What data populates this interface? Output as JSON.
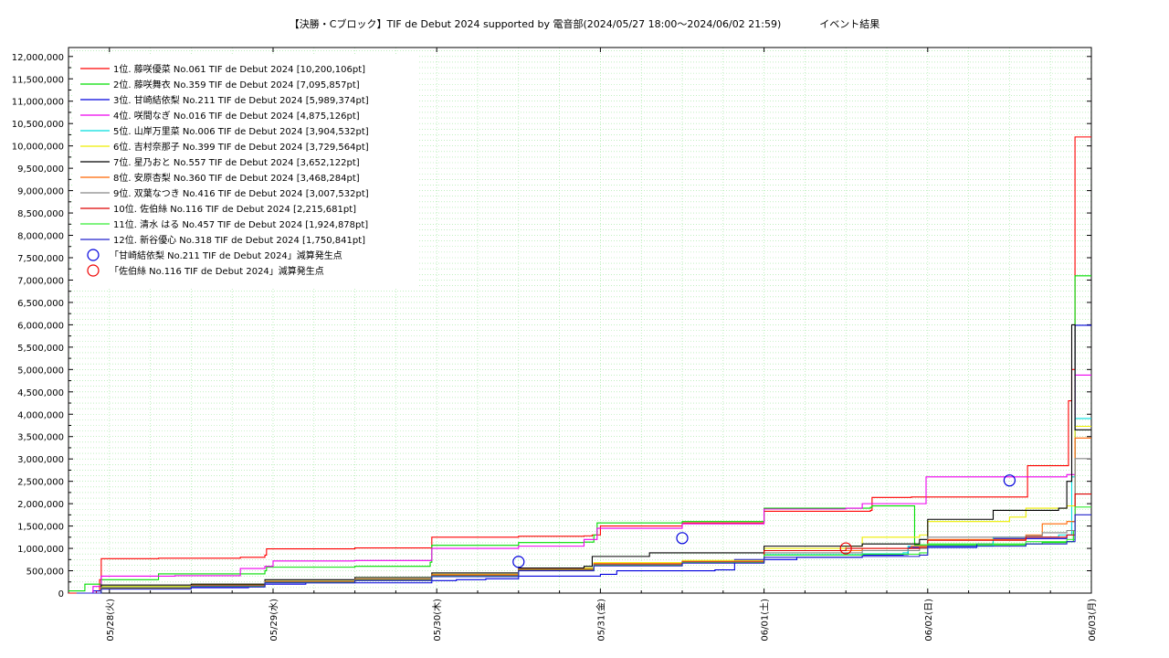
{
  "chart_data": {
    "type": "line",
    "title": "【決勝・Cブロック】TIF de Debut 2024 supported by 電音部(2024/05/27 18:00～2024/06/02 21:59)            イベント結果",
    "xlabel": "",
    "ylabel": "",
    "x_ticks": [
      "05/28(火)",
      "05/29(水)",
      "05/30(木)",
      "05/31(金)",
      "06/01(土)",
      "06/02(日)",
      "06/03(月)"
    ],
    "x_tick_days": [
      1,
      2,
      3,
      4,
      5,
      6,
      7
    ],
    "x_range_days": [
      0.75,
      7.0
    ],
    "y_ticks": [
      0,
      500000,
      1000000,
      1500000,
      2000000,
      2500000,
      3000000,
      3500000,
      4000000,
      4500000,
      5000000,
      5500000,
      6000000,
      6500000,
      7000000,
      7500000,
      8000000,
      8500000,
      9000000,
      9500000,
      10000000,
      10500000,
      11000000,
      11500000,
      12000000
    ],
    "y_tick_labels": [
      "0",
      "500,000",
      "1,000,000",
      "1,500,000",
      "2,000,000",
      "2,500,000",
      "3,000,000",
      "3,500,000",
      "4,000,000",
      "4,500,000",
      "5,000,000",
      "5,500,000",
      "6,000,000",
      "6,500,000",
      "7,000,000",
      "7,500,000",
      "8,000,000",
      "8,500,000",
      "9,000,000",
      "9,500,000",
      "10,000,000",
      "10,500,000",
      "11,000,000",
      "11,500,000",
      "12,000,000"
    ],
    "ylim": [
      0,
      12200000
    ],
    "grid": true,
    "legend_position": "top-left",
    "series": [
      {
        "name": "1位. 藤咲優菜 No.061 TIF de Debut 2024 [10,200,106pt]",
        "color": "#ff0000",
        "points": [
          [
            0.75,
            0
          ],
          [
            0.92,
            50000
          ],
          [
            0.94,
            300000
          ],
          [
            0.95,
            770000
          ],
          [
            1.3,
            780000
          ],
          [
            1.8,
            800000
          ],
          [
            1.95,
            850000
          ],
          [
            1.96,
            990000
          ],
          [
            2.5,
            1010000
          ],
          [
            2.96,
            1010000
          ],
          [
            2.97,
            1250000
          ],
          [
            3.5,
            1270000
          ],
          [
            3.9,
            1280000
          ],
          [
            3.95,
            1300000
          ],
          [
            4.0,
            1500000
          ],
          [
            4.5,
            1570000
          ],
          [
            5.0,
            1830000
          ],
          [
            5.65,
            1850000
          ],
          [
            5.66,
            2140000
          ],
          [
            5.9,
            2150000
          ],
          [
            6.6,
            2150000
          ],
          [
            6.61,
            2850000
          ],
          [
            6.84,
            2850000
          ],
          [
            6.86,
            4300000
          ],
          [
            6.88,
            5000000
          ],
          [
            6.9,
            10200106
          ],
          [
            7.0,
            10200106
          ]
        ]
      },
      {
        "name": "2位. 藤咲舞衣 No.359 TIF de Debut 2024 [7,095,857pt]",
        "color": "#00dd00",
        "points": [
          [
            0.75,
            50000
          ],
          [
            0.85,
            200000
          ],
          [
            0.95,
            300000
          ],
          [
            1.3,
            430000
          ],
          [
            1.95,
            500000
          ],
          [
            1.96,
            580000
          ],
          [
            2.5,
            600000
          ],
          [
            2.96,
            690000
          ],
          [
            2.97,
            1070000
          ],
          [
            3.5,
            1130000
          ],
          [
            3.9,
            1140000
          ],
          [
            3.96,
            1300000
          ],
          [
            3.98,
            1570000
          ],
          [
            4.5,
            1600000
          ],
          [
            5.0,
            1900000
          ],
          [
            5.65,
            1920000
          ],
          [
            5.66,
            1950000
          ],
          [
            5.9,
            1950000
          ],
          [
            5.92,
            1080000
          ],
          [
            6.6,
            1100000
          ],
          [
            6.7,
            1130000
          ],
          [
            6.85,
            1150000
          ],
          [
            6.89,
            1400000
          ],
          [
            6.9,
            7095857
          ],
          [
            7.0,
            7095857
          ]
        ]
      },
      {
        "name": "3位. 甘崎結依梨 No.211 TIF de Debut 2024 [5,989,374pt]",
        "color": "#0000dd",
        "points": [
          [
            0.8,
            0
          ],
          [
            0.9,
            50000
          ],
          [
            0.95,
            100000
          ],
          [
            1.5,
            120000
          ],
          [
            1.85,
            140000
          ],
          [
            1.95,
            200000
          ],
          [
            2.2,
            230000
          ],
          [
            2.97,
            280000
          ],
          [
            3.1,
            280000
          ],
          [
            3.12,
            300000
          ],
          [
            3.3,
            320000
          ],
          [
            3.5,
            380000
          ],
          [
            4.0,
            420000
          ],
          [
            4.1,
            500000
          ],
          [
            4.7,
            520000
          ],
          [
            4.82,
            750000
          ],
          [
            5.2,
            800000
          ],
          [
            5.6,
            850000
          ],
          [
            5.85,
            860000
          ],
          [
            5.88,
            1020000
          ],
          [
            6.3,
            1100000
          ],
          [
            6.4,
            1220000
          ],
          [
            6.85,
            1300000
          ],
          [
            6.88,
            1600000
          ],
          [
            6.9,
            5989374
          ],
          [
            7.0,
            5989374
          ]
        ]
      },
      {
        "name": "4位. 咲間なぎ No.016 TIF de Debut 2024 [4,875,126pt]",
        "color": "#ee00ee",
        "points": [
          [
            0.8,
            0
          ],
          [
            0.9,
            150000
          ],
          [
            0.95,
            380000
          ],
          [
            1.4,
            390000
          ],
          [
            1.8,
            550000
          ],
          [
            1.95,
            600000
          ],
          [
            2.0,
            720000
          ],
          [
            2.5,
            730000
          ],
          [
            2.97,
            1000000
          ],
          [
            3.5,
            1050000
          ],
          [
            3.9,
            1200000
          ],
          [
            3.98,
            1450000
          ],
          [
            4.5,
            1550000
          ],
          [
            5.0,
            1880000
          ],
          [
            5.5,
            1900000
          ],
          [
            5.6,
            2000000
          ],
          [
            5.97,
            2000000
          ],
          [
            5.99,
            2600000
          ],
          [
            6.6,
            2600000
          ],
          [
            6.85,
            2650000
          ],
          [
            6.9,
            4875126
          ],
          [
            7.0,
            4875126
          ]
        ]
      },
      {
        "name": "5位. 山岸万里菜 No.006 TIF de Debut 2024 [3,904,532pt]",
        "color": "#00dddd",
        "points": [
          [
            0.8,
            0
          ],
          [
            0.95,
            150000
          ],
          [
            1.5,
            180000
          ],
          [
            1.95,
            250000
          ],
          [
            2.5,
            300000
          ],
          [
            2.97,
            400000
          ],
          [
            3.5,
            550000
          ],
          [
            3.96,
            650000
          ],
          [
            4.5,
            700000
          ],
          [
            5.0,
            860000
          ],
          [
            5.6,
            880000
          ],
          [
            5.85,
            900000
          ],
          [
            5.88,
            1050000
          ],
          [
            6.4,
            1250000
          ],
          [
            6.8,
            1300000
          ],
          [
            6.88,
            2600000
          ],
          [
            6.9,
            3904532
          ],
          [
            7.0,
            3904532
          ]
        ]
      },
      {
        "name": "6位. 吉村奈那子 No.399 TIF de Debut 2024 [3,729,564pt]",
        "color": "#eeee00",
        "points": [
          [
            0.8,
            0
          ],
          [
            0.95,
            150000
          ],
          [
            1.5,
            190000
          ],
          [
            1.95,
            270000
          ],
          [
            2.5,
            320000
          ],
          [
            2.97,
            420000
          ],
          [
            3.5,
            560000
          ],
          [
            3.96,
            680000
          ],
          [
            4.5,
            730000
          ],
          [
            5.0,
            1000000
          ],
          [
            5.5,
            1050000
          ],
          [
            5.6,
            1250000
          ],
          [
            5.95,
            1300000
          ],
          [
            6.0,
            1600000
          ],
          [
            6.5,
            1700000
          ],
          [
            6.6,
            1900000
          ],
          [
            6.85,
            1950000
          ],
          [
            6.9,
            3729564
          ],
          [
            7.0,
            3729564
          ]
        ]
      },
      {
        "name": "7位. 星乃おと No.557 TIF de Debut 2024 [3,652,122pt]",
        "color": "#000000",
        "points": [
          [
            0.8,
            0
          ],
          [
            0.95,
            180000
          ],
          [
            1.5,
            200000
          ],
          [
            1.95,
            300000
          ],
          [
            2.5,
            350000
          ],
          [
            2.97,
            450000
          ],
          [
            3.5,
            560000
          ],
          [
            3.9,
            600000
          ],
          [
            3.95,
            820000
          ],
          [
            4.3,
            900000
          ],
          [
            5.0,
            1050000
          ],
          [
            5.6,
            1100000
          ],
          [
            5.95,
            1200000
          ],
          [
            6.0,
            1650000
          ],
          [
            6.4,
            1850000
          ],
          [
            6.8,
            1900000
          ],
          [
            6.85,
            2500000
          ],
          [
            6.88,
            6000000
          ],
          [
            6.9,
            3652122
          ],
          [
            7.0,
            3652122
          ]
        ]
      },
      {
        "name": "8位. 安原杏梨 No.360 TIF de Debut 2024 [3,468,284pt]",
        "color": "#ff6600",
        "points": [
          [
            0.8,
            0
          ],
          [
            0.95,
            120000
          ],
          [
            1.5,
            170000
          ],
          [
            1.95,
            260000
          ],
          [
            2.5,
            310000
          ],
          [
            2.97,
            410000
          ],
          [
            3.5,
            540000
          ],
          [
            3.96,
            660000
          ],
          [
            4.5,
            710000
          ],
          [
            5.0,
            950000
          ],
          [
            5.6,
            1000000
          ],
          [
            5.9,
            1050000
          ],
          [
            6.0,
            1200000
          ],
          [
            6.6,
            1300000
          ],
          [
            6.7,
            1550000
          ],
          [
            6.85,
            1600000
          ],
          [
            6.9,
            3468284
          ],
          [
            7.0,
            3468284
          ]
        ]
      },
      {
        "name": "9位. 双葉なつき No.416 TIF de Debut 2024 [3,007,532pt]",
        "color": "#888888",
        "points": [
          [
            0.8,
            0
          ],
          [
            0.95,
            130000
          ],
          [
            1.5,
            170000
          ],
          [
            1.95,
            260000
          ],
          [
            2.5,
            310000
          ],
          [
            2.97,
            400000
          ],
          [
            3.5,
            530000
          ],
          [
            3.96,
            640000
          ],
          [
            4.5,
            700000
          ],
          [
            5.0,
            900000
          ],
          [
            5.6,
            950000
          ],
          [
            5.95,
            1000000
          ],
          [
            6.0,
            1250000
          ],
          [
            6.6,
            1280000
          ],
          [
            6.7,
            1350000
          ],
          [
            6.85,
            1400000
          ],
          [
            6.9,
            3007532
          ],
          [
            7.0,
            3007532
          ]
        ]
      },
      {
        "name": "10位. 佐伯絲 No.116 TIF de Debut 2024 [2,215,681pt]",
        "color": "#dd0000",
        "points": [
          [
            0.8,
            0
          ],
          [
            0.95,
            110000
          ],
          [
            1.5,
            160000
          ],
          [
            1.95,
            250000
          ],
          [
            2.5,
            300000
          ],
          [
            2.97,
            390000
          ],
          [
            3.5,
            520000
          ],
          [
            3.96,
            630000
          ],
          [
            4.5,
            690000
          ],
          [
            5.0,
            950000
          ],
          [
            5.5,
            1000000
          ],
          [
            5.95,
            1020000
          ],
          [
            6.0,
            1180000
          ],
          [
            6.6,
            1250000
          ],
          [
            6.85,
            1300000
          ],
          [
            6.9,
            2215681
          ],
          [
            7.0,
            2215681
          ]
        ]
      },
      {
        "name": "11位. 清水 はる No.457 TIF de Debut 2024 [1,924,878pt]",
        "color": "#33ee33",
        "points": [
          [
            0.8,
            0
          ],
          [
            0.95,
            100000
          ],
          [
            1.5,
            150000
          ],
          [
            1.95,
            240000
          ],
          [
            2.5,
            290000
          ],
          [
            2.97,
            380000
          ],
          [
            3.5,
            510000
          ],
          [
            3.96,
            620000
          ],
          [
            4.5,
            680000
          ],
          [
            5.0,
            850000
          ],
          [
            5.6,
            870000
          ],
          [
            5.95,
            900000
          ],
          [
            6.0,
            1100000
          ],
          [
            6.6,
            1150000
          ],
          [
            6.85,
            1200000
          ],
          [
            6.9,
            1924878
          ],
          [
            7.0,
            1924878
          ]
        ]
      },
      {
        "name": "12位. 新谷優心 No.318 TIF de Debut 2024 [1,750,841pt]",
        "color": "#2222cc",
        "points": [
          [
            0.8,
            0
          ],
          [
            0.95,
            90000
          ],
          [
            1.5,
            140000
          ],
          [
            1.95,
            230000
          ],
          [
            2.5,
            280000
          ],
          [
            2.97,
            370000
          ],
          [
            3.5,
            500000
          ],
          [
            3.96,
            610000
          ],
          [
            4.5,
            670000
          ],
          [
            5.0,
            800000
          ],
          [
            5.6,
            820000
          ],
          [
            5.95,
            850000
          ],
          [
            6.0,
            1050000
          ],
          [
            6.6,
            1100000
          ],
          [
            6.85,
            1150000
          ],
          [
            6.9,
            1750841
          ],
          [
            7.0,
            1750841
          ]
        ]
      }
    ],
    "markers": [
      {
        "label": "「甘崎結依梨 No.211 TIF de Debut 2024」減算発生点",
        "color": "#0000dd",
        "points": [
          [
            3.5,
            700000
          ],
          [
            4.5,
            1230000
          ],
          [
            6.5,
            2520000
          ]
        ]
      },
      {
        "label": "「佐伯絲 No.116 TIF de Debut 2024」減算発生点",
        "color": "#ee0000",
        "points": [
          [
            5.5,
            1000000
          ]
        ]
      }
    ]
  }
}
